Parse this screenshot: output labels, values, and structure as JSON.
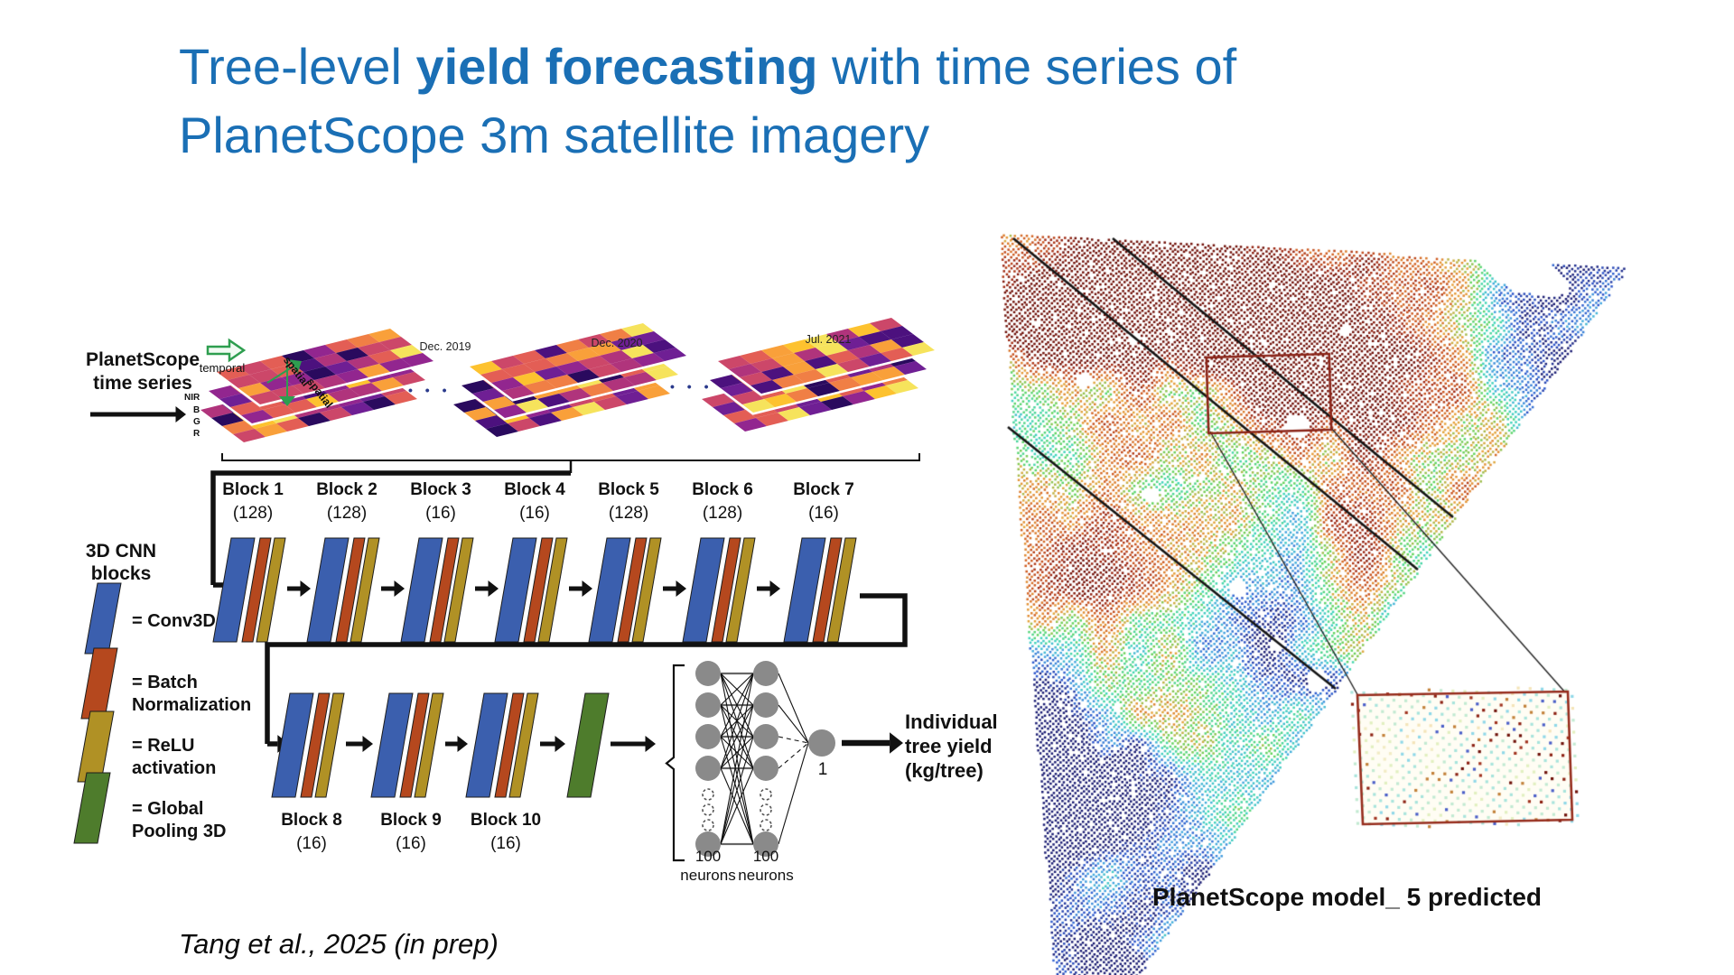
{
  "title": {
    "regular1": "Tree-level ",
    "bold": "yield forecasting",
    "regular2": " with time series of",
    "line2": "PlanetScope 3m satellite imagery",
    "color": "#1a6fb5"
  },
  "citation": "Tang et al., 2025 (in prep)",
  "architecture": {
    "input_label": [
      "PlanetScope",
      "time series"
    ],
    "temporal_label": "temporal",
    "spatial_labels": [
      "spatial",
      "spatial"
    ],
    "band_labels": [
      "NIR",
      "B",
      "G",
      "R"
    ],
    "timestamps": [
      "Dec. 2019",
      "Dec. 2020",
      "Jul. 2021"
    ],
    "ellipsis": "• • •",
    "blocks_row1": [
      {
        "name": "Block 1",
        "dim": "(128)"
      },
      {
        "name": "Block 2",
        "dim": "(128)"
      },
      {
        "name": "Block 3",
        "dim": "(16)"
      },
      {
        "name": "Block 4",
        "dim": "(16)"
      },
      {
        "name": "Block 5",
        "dim": "(128)"
      },
      {
        "name": "Block 6",
        "dim": "(128)"
      },
      {
        "name": "Block 7",
        "dim": "(16)"
      }
    ],
    "blocks_row2": [
      {
        "name": "Block 8",
        "dim": "(16)"
      },
      {
        "name": "Block 9",
        "dim": "(16)"
      },
      {
        "name": "Block 10",
        "dim": "(16)"
      }
    ],
    "legend": {
      "title": "3D CNN blocks",
      "items": [
        {
          "label": "= Conv3D",
          "color": "#3b5fae"
        },
        {
          "label": "= Batch Normalization",
          "color": "#b5481e"
        },
        {
          "label": "= ReLU activation",
          "color": "#b09125"
        },
        {
          "label": "= Global Pooling 3D",
          "color": "#4e7c2c"
        }
      ]
    },
    "mlp": {
      "hidden_labels": [
        "100 neurons",
        "100 neurons"
      ],
      "output_value": "1",
      "output_label": "Individual tree yield (kg/tree)"
    },
    "card_colors": [
      "#3b5fae",
      "#b5481e",
      "#b09125"
    ],
    "green_block_color": "#4e7c2c",
    "plasma_palette": [
      "#2a0a5e",
      "#4c117e",
      "#6f1f94",
      "#92268f",
      "#b0347c",
      "#cc4769",
      "#e35e55",
      "#f07f45",
      "#f9a03a",
      "#fdc22f",
      "#f6e35c"
    ]
  },
  "map": {
    "caption": "PlanetScope model_ 5 predicted",
    "colormap": [
      "#1a1c72",
      "#2b55cc",
      "#44a8e0",
      "#3fd6b8",
      "#62d45a",
      "#e8a23a",
      "#d05c20",
      "#a02812",
      "#701008"
    ],
    "inset_pale_palette": [
      "#f2ecc4",
      "#e2f0c0",
      "#c2ead2",
      "#a8e4dc",
      "#8fd8e8",
      "#f4e4b8"
    ],
    "inset_accent_dark": [
      "#6e1008",
      "#8c2012",
      "#a23420"
    ],
    "inset_accent_blue": "#4a5ec8",
    "inset_accent_tan": "#c28038",
    "road_color": "#141414",
    "rect_color": "#8a2418",
    "inset_border_color": "#962c1c"
  }
}
